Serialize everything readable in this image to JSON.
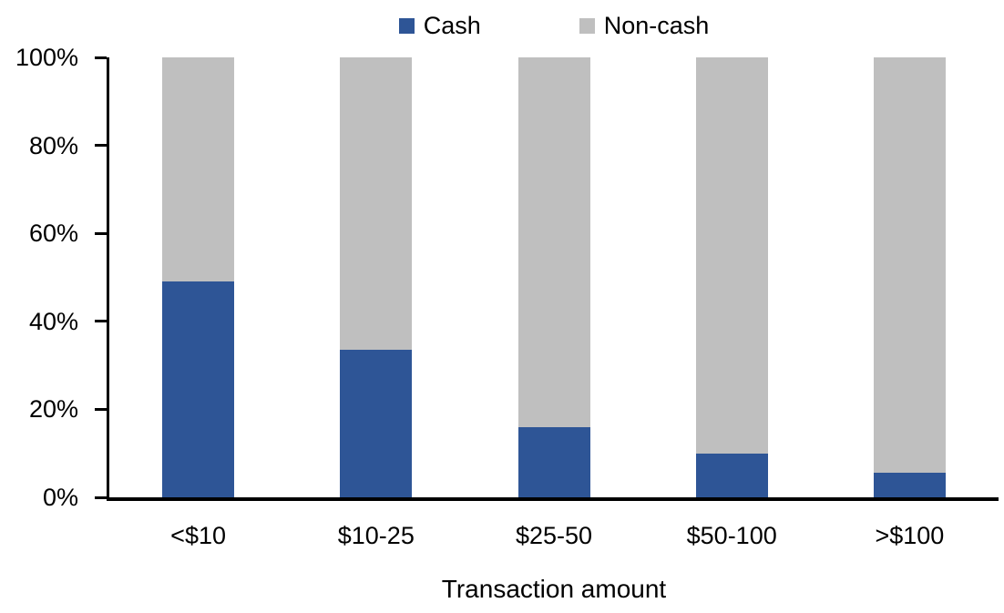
{
  "legend": {
    "items": [
      {
        "label": "Cash",
        "color": "#2E5596"
      },
      {
        "label": "Non-cash",
        "color": "#BFBFBF"
      }
    ]
  },
  "chart_data": {
    "type": "bar",
    "stacked": true,
    "units": "percent",
    "title": "",
    "categories": [
      "<$10",
      "$10-25",
      "$25-50",
      "$50-100",
      ">$100"
    ],
    "series": [
      {
        "name": "Cash",
        "color": "#2E5596",
        "values": [
          49,
          33.5,
          16,
          10,
          5.5
        ]
      },
      {
        "name": "Non-cash",
        "color": "#BFBFBF",
        "values": [
          51,
          66.5,
          84,
          90,
          94.5
        ]
      }
    ],
    "xlabel": "Transaction amount",
    "ylabel": "",
    "ylim": [
      0,
      100
    ],
    "yticks": [
      0,
      20,
      40,
      60,
      80,
      100
    ],
    "yticklabels": [
      "0%",
      "20%",
      "40%",
      "60%",
      "80%",
      "100%"
    ],
    "grid": false,
    "legend_position": "top",
    "axis_color": "#000000",
    "text_color": "#000000",
    "background_color": "#FFFFFF"
  }
}
